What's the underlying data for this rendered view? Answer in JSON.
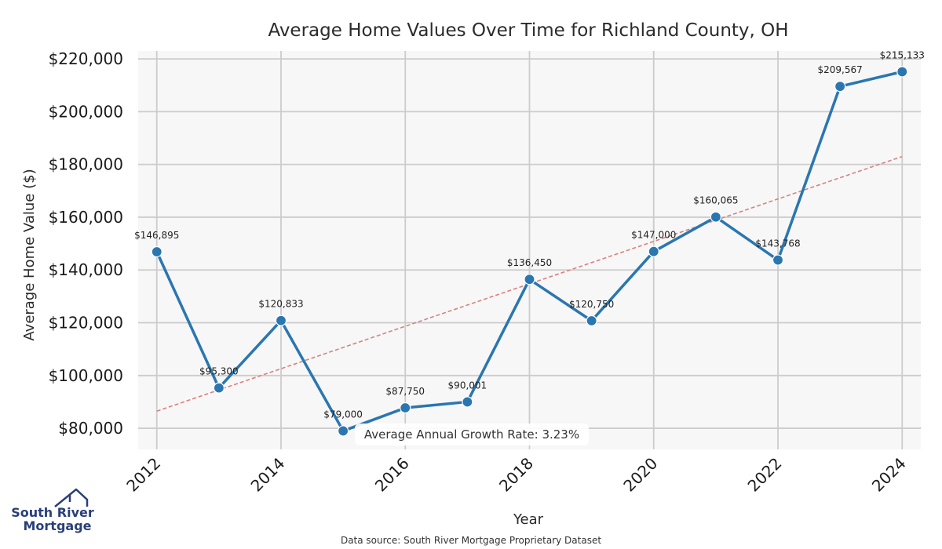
{
  "chart_data": {
    "type": "line",
    "title": "Average Home Values Over Time for Richland County, OH",
    "xlabel": "Year",
    "ylabel": "Average Home Value ($)",
    "x": [
      2012,
      2013,
      2014,
      2015,
      2016,
      2017,
      2018,
      2019,
      2020,
      2021,
      2022,
      2023,
      2024
    ],
    "series": [
      {
        "values": [
          146895,
          95300,
          120833,
          79000,
          87750,
          90001,
          136450,
          120750,
          147000,
          160065,
          143768,
          209567,
          215133
        ],
        "labels": [
          "$146,895",
          "$95,300",
          "$120,833",
          "$79,000",
          "$87,750",
          "$90,001",
          "$136,450",
          "$120,750",
          "$147,000",
          "$160,065",
          "$143,768",
          "$209,567",
          "$215,133"
        ],
        "color": "#2a76b0"
      }
    ],
    "trendline": {
      "x": [
        2012,
        2024
      ],
      "values": [
        86500,
        183000
      ],
      "color": "#d98080",
      "style": "dashed"
    },
    "xticks": [
      2012,
      2014,
      2016,
      2018,
      2020,
      2022,
      2024
    ],
    "xtick_labels": [
      "2012",
      "2014",
      "2016",
      "2018",
      "2020",
      "2022",
      "2024"
    ],
    "yticks": [
      80000,
      100000,
      120000,
      140000,
      160000,
      180000,
      200000,
      220000
    ],
    "ytick_labels": [
      "$80,000",
      "$100,000",
      "$120,000",
      "$140,000",
      "$160,000",
      "$180,000",
      "$200,000",
      "$220,000"
    ],
    "xlim": [
      2011.7,
      2024.3
    ],
    "ylim": [
      72000,
      223000
    ],
    "grid": true,
    "annotation": "Average Annual Growth Rate: 3.23%"
  },
  "source_note": "Data source: South River Mortgage Proprietary Dataset",
  "logo": {
    "line1": "South River",
    "line2": "Mortgage",
    "icon": "house-roof-icon"
  },
  "colors": {
    "plot_bg": "#f7f7f7",
    "grid": "#cccccc",
    "line": "#2a76b0",
    "trend": "#d98080",
    "logo": "#2a3f78"
  }
}
